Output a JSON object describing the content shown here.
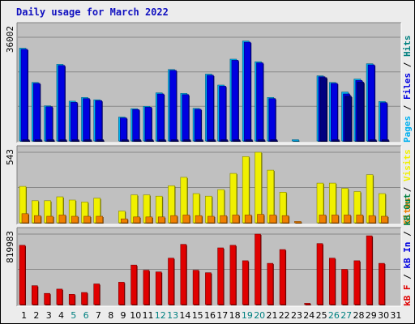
{
  "chart_data": {
    "type": "bar",
    "title": "Daily usage for March 2022",
    "colors": {
      "pages": "#000080",
      "files": "#0000e0",
      "hits": "#00b0f0",
      "visits": "#f0f000",
      "sites": "#f08000",
      "kb_in": "#008040",
      "kb_out": "#008080",
      "kb_f": "#e00000",
      "weekend": "#008080",
      "weekday": "#000000",
      "panel": "#c0c0c0"
    },
    "x": [
      "1",
      "2",
      "3",
      "4",
      "5",
      "6",
      "7",
      "8",
      "9",
      "10",
      "11",
      "12",
      "13",
      "14",
      "15",
      "16",
      "17",
      "18",
      "19",
      "20",
      "21",
      "22",
      "23",
      "24",
      "25",
      "26",
      "27",
      "28",
      "29",
      "30",
      "31"
    ],
    "weekend": [
      5,
      6,
      12,
      13,
      19,
      20,
      26,
      27
    ],
    "panels": [
      {
        "id": "hits",
        "ymax_label": "36002",
        "ymax": 36002,
        "right_labels": [
          {
            "text": "Pages",
            "color": "#00b0f0"
          },
          {
            "text": " / ",
            "color": "#000000"
          },
          {
            "text": "Files",
            "color": "#0000e0"
          },
          {
            "text": " / ",
            "color": "#000000"
          },
          {
            "text": "Hits",
            "color": "#008080"
          }
        ],
        "series": [
          {
            "key": "hits",
            "values": [
              32200,
              20300,
              12200,
              26600,
              13800,
              15100,
              14300,
              0,
              8300,
              11200,
              12000,
              16700,
              24800,
              16500,
              11300,
              23200,
              19400,
              28400,
              34700,
              27500,
              15100,
              0,
              300,
              0,
              22600,
              20300,
              17000,
              21500,
              26800,
              13700,
              0
            ]
          },
          {
            "key": "files",
            "values": [
              31800,
              20000,
              11900,
              26200,
              13400,
              14700,
              14000,
              0,
              8000,
              10900,
              11700,
              16300,
              24500,
              16100,
              11000,
              22800,
              19000,
              28000,
              34300,
              27100,
              14700,
              0,
              0,
              0,
              22300,
              20000,
              16300,
              21000,
              26400,
              13300,
              0
            ]
          },
          {
            "key": "pages",
            "values": [
              300,
              200,
              150,
              250,
              150,
              150,
              150,
              0,
              100,
              120,
              130,
              180,
              250,
              180,
              120,
              230,
              200,
              280,
              340,
              270,
              160,
              0,
              0,
              0,
              22000,
              200,
              15500,
              20400,
              200,
              150,
              0
            ]
          }
        ]
      },
      {
        "id": "visits",
        "ymax_label": "543",
        "ymax": 543,
        "right_labels": [
          {
            "text": "Sites",
            "color": "#f08000"
          },
          {
            "text": " / ",
            "color": "#000000"
          },
          {
            "text": "Visits",
            "color": "#f0f000"
          }
        ],
        "series": [
          {
            "key": "visits",
            "values": [
              280,
              170,
              170,
              200,
              175,
              160,
              190,
              0,
              90,
              215,
              215,
              205,
              285,
              350,
              225,
              205,
              255,
              380,
              510,
              543,
              405,
              235,
              0,
              0,
              305,
              305,
              265,
              240,
              370,
              225,
              0
            ]
          },
          {
            "key": "sites",
            "values": [
              70,
              55,
              50,
              60,
              50,
              50,
              50,
              0,
              30,
              45,
              45,
              45,
              55,
              60,
              55,
              50,
              55,
              60,
              60,
              65,
              60,
              55,
              10,
              0,
              60,
              60,
              60,
              60,
              55,
              50,
              0
            ]
          }
        ]
      },
      {
        "id": "kbytes",
        "ymax_label": "819983",
        "ymax": 819983,
        "right_labels": [
          {
            "text": "kB F",
            "color": "#e00000"
          },
          {
            "text": " / ",
            "color": "#000000"
          },
          {
            "text": "kB In",
            "color": "#0000e0"
          },
          {
            "text": " / ",
            "color": "#000000"
          },
          {
            "text": "kB Out",
            "color": "#008040"
          }
        ],
        "series": [
          {
            "key": "kb_f",
            "values": [
              690000,
              220000,
              130000,
              180000,
              120000,
              140000,
              240000,
              0,
              260000,
              460000,
              400000,
              380000,
              540000,
              700000,
              400000,
              370000,
              660000,
              690000,
              510000,
              819983,
              480000,
              640000,
              0,
              15000,
              710000,
              540000,
              410000,
              510000,
              800000,
              480000,
              0
            ]
          }
        ]
      }
    ]
  }
}
